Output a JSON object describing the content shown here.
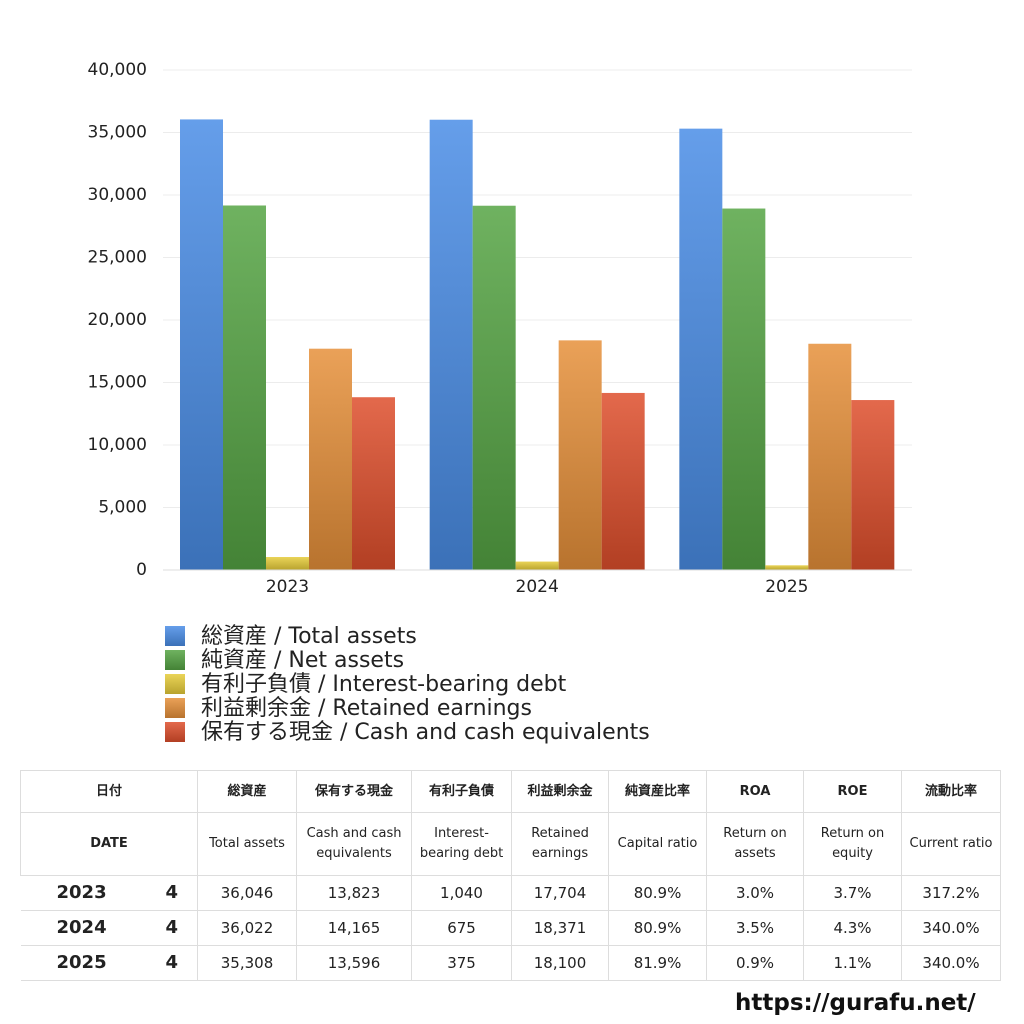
{
  "chart_data": {
    "type": "bar",
    "categories": [
      "2023",
      "2024",
      "2025"
    ],
    "series": [
      {
        "name": "総資産 / Total assets",
        "color": "#4a8de6",
        "values": [
          36046,
          36022,
          35308
        ]
      },
      {
        "name": "純資産 / Net assets",
        "color": "#55a444",
        "values": [
          29161,
          29142,
          28917
        ]
      },
      {
        "name": "有利子負債 / Interest-bearing debt",
        "color": "#e6cc3a",
        "values": [
          1040,
          675,
          375
        ]
      },
      {
        "name": "利益剰余金 / Retained earnings",
        "color": "#e6903a",
        "values": [
          17704,
          18371,
          18100
        ]
      },
      {
        "name": "保有する現金 /  Cash and cash equivalents",
        "color": "#de4f2c",
        "values": [
          13823,
          14165,
          13596
        ]
      }
    ],
    "ylim": [
      0,
      40000
    ],
    "yticks": [
      0,
      {
        "value": 5000,
        "label": "5,000"
      },
      {
        "value": 10000,
        "label": "10,000"
      },
      {
        "value": 15000,
        "label": "15,000"
      },
      {
        "value": 20000,
        "label": "20,000"
      },
      {
        "value": 25000,
        "label": "25,000"
      },
      {
        "value": 30000,
        "label": "30,000"
      },
      {
        "value": 35000,
        "label": "35,000"
      },
      {
        "value": 40000,
        "label": "40,000"
      }
    ],
    "grid": true
  },
  "table": {
    "header_ja": [
      "日付",
      "総資産",
      "保有する現金",
      "有利子負債",
      "利益剰余金",
      "純資産比率",
      "ROA",
      "ROE",
      "流動比率"
    ],
    "header_en": [
      "DATE",
      "Total assets",
      "Cash and cash equivalents",
      "Interest-bearing debt",
      "Retained earnings",
      "Capital ratio",
      "Return on assets",
      "Return on equity",
      "Current ratio"
    ],
    "rows": [
      [
        "2023",
        "4",
        "36,046",
        "13,823",
        "1,040",
        "17,704",
        "80.9%",
        "3.0%",
        "3.7%",
        "317.2%"
      ],
      [
        "2024",
        "4",
        "36,022",
        "14,165",
        "675",
        "18,371",
        "80.9%",
        "3.5%",
        "4.3%",
        "340.0%"
      ],
      [
        "2025",
        "4",
        "35,308",
        "13,596",
        "375",
        "18,100",
        "81.9%",
        "0.9%",
        "1.1%",
        "340.0%"
      ]
    ]
  },
  "footer": {
    "url": "https://gurafu.net/"
  }
}
